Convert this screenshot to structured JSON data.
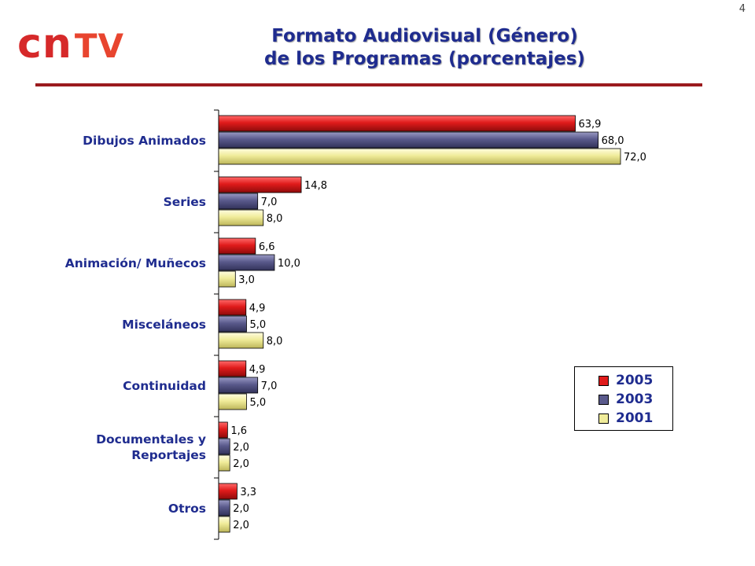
{
  "page_number": "4",
  "logo": {
    "part1": "cn",
    "part2": "TV"
  },
  "title_lines": [
    "Formato Audiovisual (Género)",
    "de los Programas (porcentajes)"
  ],
  "colors": {
    "title": "#1f2c8f",
    "rule": "#9b1b1e",
    "s2005": "#e01b1b",
    "s2003": "#5a5a8c",
    "s2001": "#f0ec9a"
  },
  "chart_data": {
    "type": "bar",
    "orientation": "horizontal",
    "title": "Formato Audiovisual (Género) de los Programas (porcentajes)",
    "categories": [
      "Dibujos Animados",
      "Series",
      "Animación/ Muñecos",
      "Misceláneos",
      "Continuidad",
      "Documentales y Reportajes",
      "Otros"
    ],
    "category_lines": [
      [
        "Dibujos Animados"
      ],
      [
        "Series"
      ],
      [
        "Animación/ Muñecos"
      ],
      [
        "Misceláneos"
      ],
      [
        "Continuidad"
      ],
      [
        "Documentales y",
        "Reportajes"
      ],
      [
        "Otros"
      ]
    ],
    "series": [
      {
        "name": "2005",
        "color": "#e01b1b",
        "values": [
          63.9,
          14.8,
          6.6,
          4.9,
          4.9,
          1.6,
          3.3
        ],
        "labels": [
          "63,9",
          "14,8",
          "6,6",
          "4,9",
          "4,9",
          "1,6",
          "3,3"
        ]
      },
      {
        "name": "2003",
        "color": "#5a5a8c",
        "values": [
          68.0,
          7.0,
          10.0,
          5.0,
          7.0,
          2.0,
          2.0
        ],
        "labels": [
          "68,0",
          "7,0",
          "10,0",
          "5,0",
          "7,0",
          "2,0",
          "2,0"
        ]
      },
      {
        "name": "2001",
        "color": "#f0ec9a",
        "values": [
          72.0,
          8.0,
          3.0,
          8.0,
          5.0,
          2.0,
          2.0
        ],
        "labels": [
          "72,0",
          "8,0",
          "3,0",
          "8,0",
          "5,0",
          "2,0",
          "2,0"
        ]
      }
    ],
    "xlim": [
      0,
      72
    ],
    "grid": false,
    "legend_position": "bottom-right"
  }
}
